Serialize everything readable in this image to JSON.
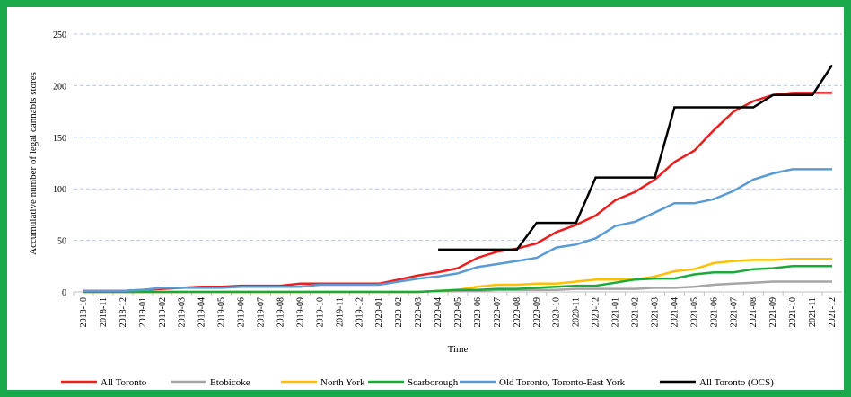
{
  "chart_data": {
    "type": "line",
    "y_label": "Accumulative number of legal cannabis stores",
    "x_label": "Time",
    "categories": [
      "2018-10",
      "2018-11",
      "2018-12",
      "2019-01",
      "2019-02",
      "2019-03",
      "2019-04",
      "2019-05",
      "2019-06",
      "2019-07",
      "2019-08",
      "2019-09",
      "2019-10",
      "2019-11",
      "2019-12",
      "2020-01",
      "2020-02",
      "2020-03",
      "2020-04",
      "2020-05",
      "2020-06",
      "2020-07",
      "2020-08",
      "2020-09",
      "2020-10",
      "2020-11",
      "2020-12",
      "2021-01",
      "2021-02",
      "2021-03",
      "2021-04",
      "2021-05",
      "2021-06",
      "2021-07",
      "2021-08",
      "2021-09",
      "2021-10",
      "2021-11",
      "2021-12"
    ],
    "ylim": [
      0,
      250
    ],
    "yticks": [
      0,
      50,
      100,
      150,
      200,
      250
    ],
    "grid": true,
    "legend": "bottom",
    "series": [
      {
        "name": "All Toronto",
        "color": "#ee1c1c",
        "values": [
          1,
          1,
          1,
          2,
          3,
          4,
          5,
          5,
          6,
          6,
          6,
          8,
          8,
          8,
          8,
          8,
          12,
          16,
          19,
          23,
          33,
          39,
          42,
          47,
          58,
          65,
          74,
          89,
          97,
          109,
          126,
          137,
          157,
          175,
          185,
          191,
          193,
          193,
          193
        ]
      },
      {
        "name": "Etobicoke",
        "color": "#a5a5a5",
        "values": [
          0,
          0,
          0,
          0,
          0,
          0,
          0,
          0,
          0,
          0,
          0,
          0,
          0,
          0,
          0,
          0,
          0,
          0,
          1,
          1,
          1,
          2,
          2,
          2,
          2,
          3,
          3,
          3,
          3,
          4,
          4,
          5,
          7,
          8,
          9,
          10,
          10,
          10,
          10
        ]
      },
      {
        "name": "North York",
        "color": "#ffc000",
        "values": [
          0,
          0,
          0,
          0,
          0,
          0,
          0,
          0,
          0,
          0,
          0,
          0,
          0,
          0,
          0,
          0,
          0,
          0,
          1,
          2,
          5,
          7,
          7,
          8,
          8,
          10,
          12,
          12,
          12,
          15,
          20,
          22,
          28,
          30,
          31,
          31,
          32,
          32,
          32
        ]
      },
      {
        "name": "Scarborough",
        "color": "#1aaa3c",
        "values": [
          0,
          0,
          0,
          0,
          0,
          0,
          0,
          0,
          0,
          0,
          0,
          0,
          0,
          0,
          0,
          0,
          0,
          0,
          1,
          2,
          2,
          3,
          3,
          4,
          5,
          6,
          6,
          9,
          12,
          13,
          13,
          17,
          19,
          19,
          22,
          23,
          25,
          25,
          25
        ]
      },
      {
        "name": "Old Toronto, Toronto-East York",
        "color": "#5b9bd5",
        "values": [
          1,
          1,
          1,
          2,
          4,
          4,
          4,
          4,
          5,
          5,
          5,
          5,
          7,
          7,
          7,
          7,
          10,
          13,
          15,
          18,
          24,
          27,
          30,
          33,
          43,
          46,
          52,
          64,
          68,
          77,
          86,
          86,
          90,
          98,
          109,
          115,
          119,
          119,
          119
        ]
      },
      {
        "name": "All Toronto (OCS)",
        "color": "#000000",
        "values": [
          null,
          null,
          null,
          null,
          null,
          null,
          null,
          null,
          null,
          null,
          null,
          null,
          null,
          null,
          null,
          null,
          null,
          null,
          41,
          41,
          41,
          41,
          41,
          67,
          67,
          67,
          111,
          111,
          111,
          111,
          179,
          179,
          179,
          179,
          179,
          191,
          191,
          191,
          220
        ]
      }
    ]
  }
}
